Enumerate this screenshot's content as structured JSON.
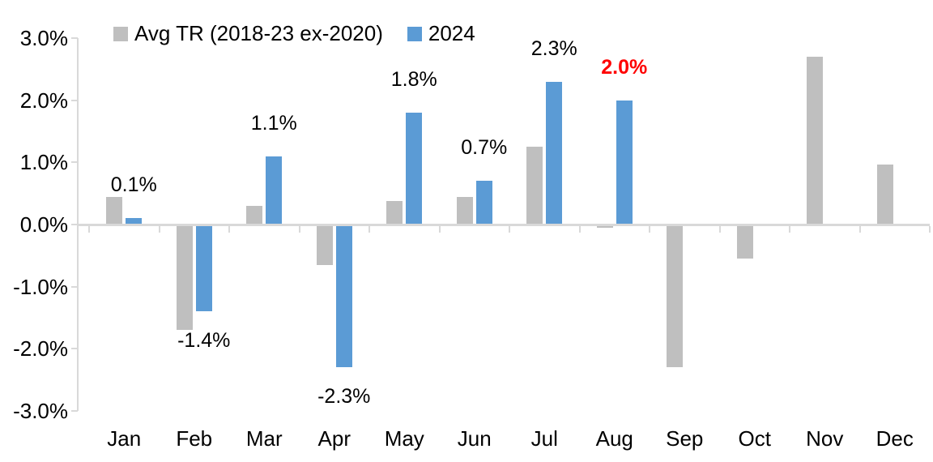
{
  "chart_data": {
    "type": "bar",
    "title": "",
    "categories": [
      "Jan",
      "Feb",
      "Mar",
      "Apr",
      "May",
      "Jun",
      "Jul",
      "Aug",
      "Sep",
      "Oct",
      "Nov",
      "Dec"
    ],
    "series": [
      {
        "name": "Avg TR (2018-23 ex-2020)",
        "color": "#BFBFBF",
        "values": [
          0.45,
          -1.7,
          0.3,
          -0.65,
          0.38,
          0.45,
          1.25,
          -0.05,
          -2.3,
          -0.55,
          2.7,
          0.97
        ]
      },
      {
        "name": "2024",
        "color": "#5B9BD5",
        "values": [
          0.1,
          -1.4,
          1.1,
          -2.3,
          1.8,
          0.7,
          2.3,
          2.0,
          null,
          null,
          null,
          null
        ]
      }
    ],
    "data_labels": [
      {
        "month": "Jan",
        "text": "0.1%",
        "color": "#000000",
        "bold": false
      },
      {
        "month": "Feb",
        "text": "-1.4%",
        "color": "#000000",
        "bold": false
      },
      {
        "month": "Mar",
        "text": "1.1%",
        "color": "#000000",
        "bold": false
      },
      {
        "month": "Apr",
        "text": "-2.3%",
        "color": "#000000",
        "bold": false
      },
      {
        "month": "May",
        "text": "1.8%",
        "color": "#000000",
        "bold": false
      },
      {
        "month": "Jun",
        "text": "0.7%",
        "color": "#000000",
        "bold": false
      },
      {
        "month": "Jul",
        "text": "2.3%",
        "color": "#000000",
        "bold": false
      },
      {
        "month": "Aug",
        "text": "2.0%",
        "color": "#FF0000",
        "bold": true
      }
    ],
    "y_ticks": [
      "3.0%",
      "2.0%",
      "1.0%",
      "0.0%",
      "-1.0%",
      "-2.0%",
      "-3.0%"
    ],
    "ylim": [
      -3,
      3
    ],
    "xlabel": "",
    "ylabel": "",
    "legend_position": "top",
    "grid": false,
    "axis_color": "#D9D9D9",
    "label_highlight_color": "#FF0000",
    "text_color": "#000000"
  }
}
